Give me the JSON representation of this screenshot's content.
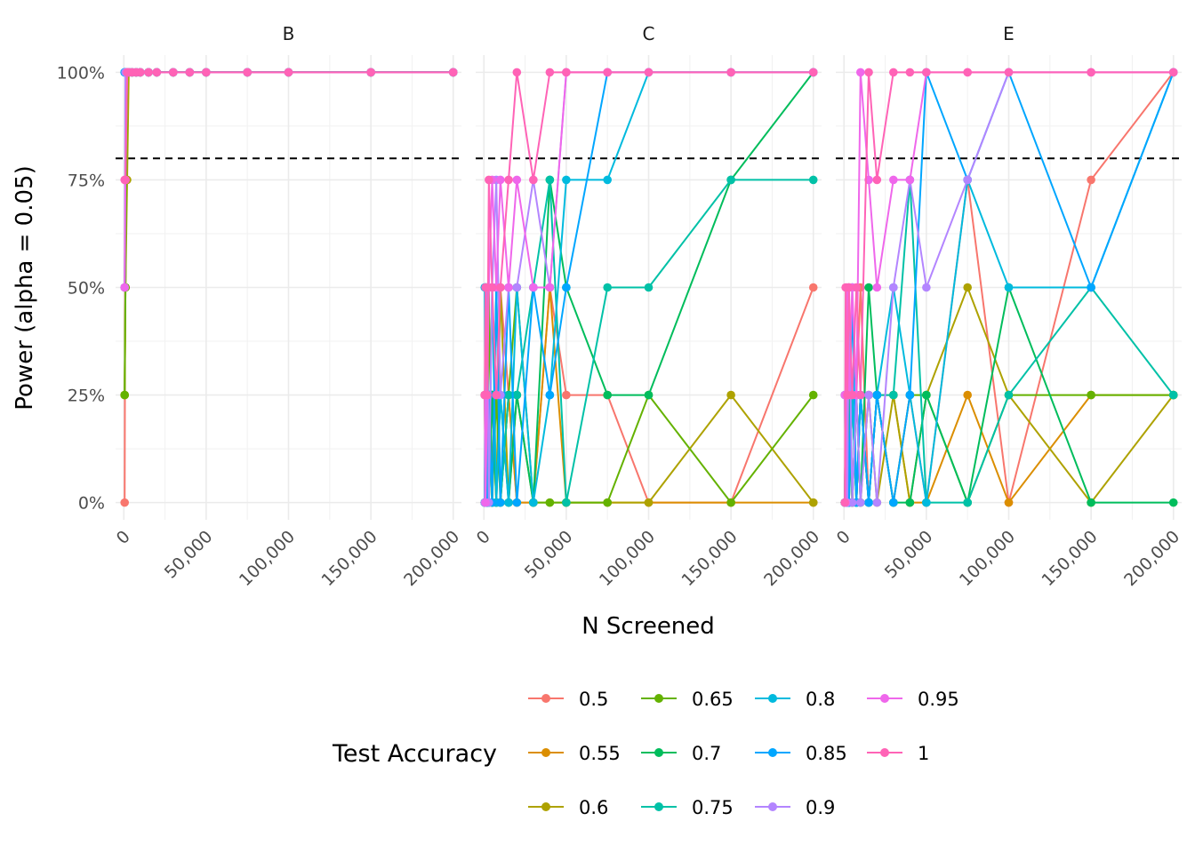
{
  "chart_data": {
    "type": "line",
    "xlabel": "N Screened",
    "ylabel": "Power (alpha = 0.05)",
    "xlim": [
      -5000,
      205000
    ],
    "ylim": [
      -0.04,
      1.04
    ],
    "x_ticks": [
      0,
      50000,
      100000,
      150000,
      200000
    ],
    "x_tick_labels": [
      "0",
      "50,000",
      "100,000",
      "150,000",
      "200,000"
    ],
    "y_ticks": [
      0,
      0.25,
      0.5,
      0.75,
      1
    ],
    "y_tick_labels": [
      "0%",
      "25%",
      "50%",
      "75%",
      "100%"
    ],
    "reference_line": {
      "y": 0.8,
      "style": "dashed",
      "color": "#000000"
    },
    "grid": true,
    "legend": {
      "title": "Test Accuracy",
      "position": "bottom",
      "entries": [
        "0.5",
        "0.55",
        "0.6",
        "0.65",
        "0.7",
        "0.75",
        "0.8",
        "0.85",
        "0.9",
        "0.95",
        "1"
      ],
      "colors": [
        "#F8766D",
        "#DB8E00",
        "#AEA200",
        "#64B200",
        "#00BD5C",
        "#00C1A7",
        "#00BADE",
        "#00A6FF",
        "#B385FF",
        "#EF67EB",
        "#FF63B6"
      ]
    },
    "x_values": [
      500,
      1000,
      2000,
      3000,
      5000,
      7500,
      10000,
      15000,
      20000,
      30000,
      40000,
      50000,
      75000,
      100000,
      150000,
      200000
    ],
    "panels": [
      {
        "name": "B",
        "series": [
          {
            "name": "0.5",
            "values": [
              0,
              0.75,
              1,
              1,
              1,
              1,
              1,
              1,
              1,
              1,
              1,
              1,
              1,
              1,
              1,
              1
            ]
          },
          {
            "name": "0.55",
            "values": [
              0.25,
              0.5,
              1,
              1,
              1,
              1,
              1,
              1,
              1,
              1,
              1,
              1,
              1,
              1,
              1,
              1
            ]
          },
          {
            "name": "0.6",
            "values": [
              0.25,
              0.5,
              0.75,
              1,
              1,
              1,
              1,
              1,
              1,
              1,
              1,
              1,
              1,
              1,
              1,
              1
            ]
          },
          {
            "name": "0.65",
            "values": [
              0.25,
              0.5,
              1,
              1,
              1,
              1,
              1,
              1,
              1,
              1,
              1,
              1,
              1,
              1,
              1,
              1
            ]
          },
          {
            "name": "0.7",
            "values": [
              0.5,
              0.75,
              1,
              1,
              1,
              1,
              1,
              1,
              1,
              1,
              1,
              1,
              1,
              1,
              1,
              1
            ]
          },
          {
            "name": "0.75",
            "values": [
              1,
              1,
              1,
              1,
              1,
              1,
              1,
              1,
              1,
              1,
              1,
              1,
              1,
              1,
              1,
              1
            ]
          },
          {
            "name": "0.8",
            "values": [
              1,
              1,
              1,
              1,
              1,
              1,
              1,
              1,
              1,
              1,
              1,
              1,
              1,
              1,
              1,
              1
            ]
          },
          {
            "name": "0.85",
            "values": [
              1,
              1,
              1,
              1,
              1,
              1,
              1,
              1,
              1,
              1,
              1,
              1,
              1,
              1,
              1,
              1
            ]
          },
          {
            "name": "0.9",
            "values": [
              0.5,
              1,
              1,
              1,
              1,
              1,
              1,
              1,
              1,
              1,
              1,
              1,
              1,
              1,
              1,
              1
            ]
          },
          {
            "name": "0.95",
            "values": [
              0.5,
              0.75,
              1,
              1,
              1,
              1,
              1,
              1,
              1,
              1,
              1,
              1,
              1,
              1,
              1,
              1
            ]
          },
          {
            "name": "1",
            "values": [
              0.75,
              0.75,
              1,
              1,
              1,
              1,
              1,
              1,
              1,
              1,
              1,
              1,
              1,
              1,
              1,
              1
            ]
          }
        ]
      },
      {
        "name": "C",
        "series": [
          {
            "name": "0.5",
            "values": [
              0.25,
              0,
              0.25,
              0,
              0.25,
              0,
              0.5,
              0.25,
              0,
              0,
              0.5,
              0.25,
              0.25,
              0,
              0,
              0.5
            ]
          },
          {
            "name": "0.55",
            "values": [
              0,
              0.25,
              0,
              0.25,
              0,
              0.5,
              0,
              0.25,
              0,
              0,
              0.5,
              0,
              0,
              0,
              0,
              0
            ]
          },
          {
            "name": "0.6",
            "values": [
              0,
              0.25,
              0.5,
              0,
              0.25,
              0,
              0.5,
              0,
              0.25,
              0,
              0,
              0,
              0,
              0,
              0.25,
              0
            ]
          },
          {
            "name": "0.65",
            "values": [
              0.25,
              0,
              0,
              0.5,
              0,
              0.25,
              0,
              0.25,
              0.5,
              0,
              0,
              0,
              0,
              0.25,
              0,
              0.25
            ]
          },
          {
            "name": "0.7",
            "values": [
              0,
              0.25,
              0,
              0,
              0.25,
              0,
              0.25,
              0,
              0.25,
              0,
              0.75,
              0.5,
              0.25,
              0.25,
              0.75,
              1
            ]
          },
          {
            "name": "0.75",
            "values": [
              0,
              0.5,
              0,
              0.25,
              0,
              0.5,
              0,
              0.25,
              0.25,
              0.5,
              0.75,
              0,
              0.5,
              0.5,
              0.75,
              0.75
            ]
          },
          {
            "name": "0.8",
            "values": [
              0.5,
              0,
              0.25,
              0,
              0.5,
              0,
              0.25,
              0,
              0.5,
              0,
              0.25,
              0.75,
              0.75,
              1,
              1,
              1
            ]
          },
          {
            "name": "0.85",
            "values": [
              0,
              0.5,
              0,
              0.25,
              0,
              0.5,
              0,
              0.5,
              0,
              0.5,
              0.25,
              0.5,
              1,
              1,
              1,
              1
            ]
          },
          {
            "name": "0.9",
            "values": [
              0,
              0.25,
              0.5,
              0,
              0.5,
              0.75,
              0.25,
              0.5,
              0.5,
              0.75,
              0.5,
              1,
              1,
              1,
              1,
              1
            ]
          },
          {
            "name": "0.95",
            "values": [
              0.25,
              0,
              0.25,
              0.5,
              0.75,
              0.5,
              0.75,
              0.5,
              0.75,
              0.5,
              0.5,
              1,
              1,
              1,
              1,
              1
            ]
          },
          {
            "name": "1",
            "values": [
              0.25,
              0.5,
              0.25,
              0.75,
              0.5,
              0.25,
              0.5,
              0.75,
              1,
              0.75,
              1,
              1,
              1,
              1,
              1,
              1
            ]
          }
        ]
      },
      {
        "name": "E",
        "series": [
          {
            "name": "0.5",
            "values": [
              0,
              0.25,
              0,
              0.5,
              0,
              0.25,
              0.5,
              0,
              0.25,
              0,
              0.25,
              0,
              0.75,
              0,
              0.75,
              1
            ]
          },
          {
            "name": "0.55",
            "values": [
              0,
              0,
              0.25,
              0,
              0.25,
              0,
              0.25,
              0,
              0.25,
              0.25,
              0,
              0,
              0.25,
              0,
              0.25,
              0.25
            ]
          },
          {
            "name": "0.6",
            "values": [
              0,
              0.25,
              0,
              0.25,
              0,
              0.25,
              0,
              0.25,
              0,
              0.25,
              0,
              0.25,
              0.5,
              0.25,
              0,
              0.25
            ]
          },
          {
            "name": "0.65",
            "values": [
              0,
              0,
              0.25,
              0,
              0.25,
              0,
              0.25,
              0,
              0.25,
              0,
              0.25,
              0.25,
              0,
              0.25,
              0.25,
              0.25
            ]
          },
          {
            "name": "0.7",
            "values": [
              0,
              0.25,
              0,
              0.25,
              0,
              0.25,
              0,
              0.5,
              0.25,
              0,
              0,
              0.25,
              0,
              0.5,
              0,
              0
            ]
          },
          {
            "name": "0.75",
            "values": [
              0.25,
              0,
              0.25,
              0,
              0.25,
              0,
              0.25,
              0,
              0.25,
              0.25,
              0.75,
              0,
              0,
              0.25,
              0.5,
              0.25
            ]
          },
          {
            "name": "0.8",
            "values": [
              0,
              0.25,
              0,
              0,
              0.25,
              0,
              0.25,
              0,
              0.25,
              0.5,
              0.25,
              0,
              0.75,
              0.5,
              0.5,
              1
            ]
          },
          {
            "name": "0.85",
            "values": [
              0,
              0,
              0.25,
              0,
              0.5,
              0,
              0.25,
              0,
              0.25,
              0,
              0.25,
              1,
              0.75,
              1,
              0.5,
              1
            ]
          },
          {
            "name": "0.9",
            "values": [
              0,
              0.25,
              0,
              0.5,
              0,
              0.25,
              0,
              0.25,
              0,
              0.5,
              0.75,
              0.5,
              0.75,
              1,
              1,
              1
            ]
          },
          {
            "name": "0.95",
            "values": [
              0.25,
              0,
              0.5,
              0.25,
              0.5,
              0.25,
              1,
              0.75,
              0.5,
              0.75,
              0.75,
              1,
              1,
              1,
              1,
              1
            ]
          },
          {
            "name": "1",
            "values": [
              0,
              0.5,
              0.25,
              0.5,
              0.25,
              0.5,
              0.25,
              1,
              0.75,
              1,
              1,
              1,
              1,
              1,
              1,
              1
            ]
          }
        ]
      }
    ]
  }
}
